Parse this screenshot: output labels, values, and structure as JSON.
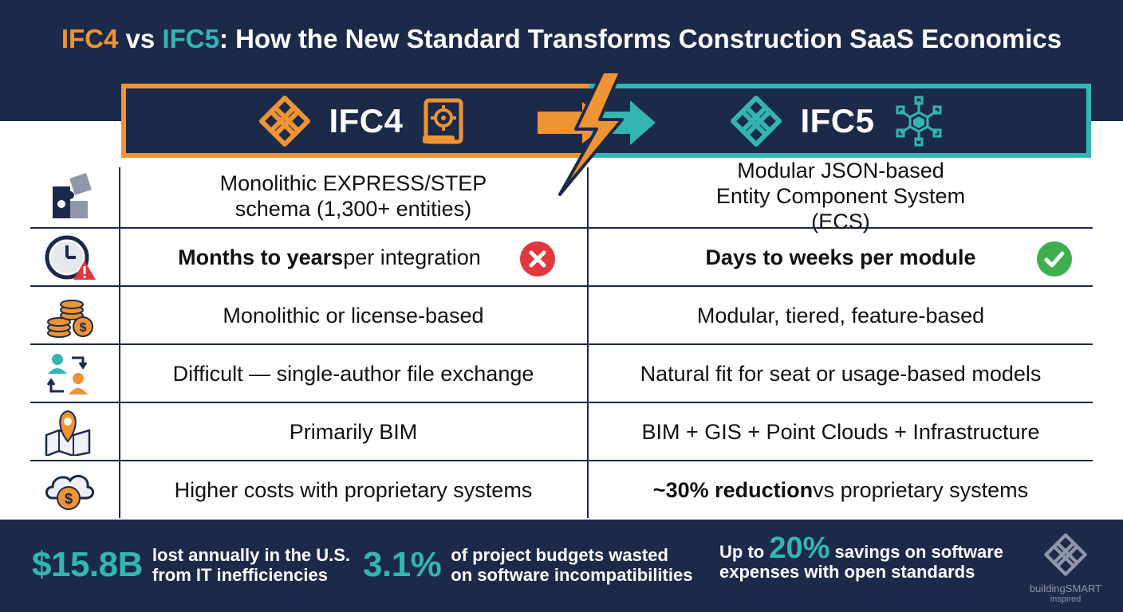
{
  "title": {
    "part1": "IFC4",
    "part2": " vs ",
    "part3": "IFC5",
    "part4": ": How the New Standard Transforms Construction SaaS Economics"
  },
  "header": {
    "left_label": "IFC4",
    "right_label": "IFC5"
  },
  "rows": [
    {
      "icon": "puzzle-icon",
      "left": "Monolithic EXPRESS/STEP schema (1,300+ entities)",
      "right": "Modular JSON-based Entity Component System (ECS)"
    },
    {
      "icon": "clock-warning-icon",
      "left_bold": "Months to years",
      "left_rest": " per integration",
      "left_status": "x-icon",
      "right_bold": "Days to weeks per module",
      "right_status": "check-icon"
    },
    {
      "icon": "coins-icon",
      "left": "Monolithic or license-based",
      "right": "Modular, tiered, feature-based"
    },
    {
      "icon": "users-exchange-icon",
      "left": "Difficult — single-author file exchange",
      "right": "Natural fit for seat or usage-based models"
    },
    {
      "icon": "map-pin-icon",
      "left": "Primarily BIM",
      "right": "BIM + GIS + Point Clouds + Infrastructure"
    },
    {
      "icon": "cloud-dollar-icon",
      "left": "Higher costs with proprietary systems",
      "right_bold": "~30% reduction",
      "right_rest": " vs proprietary systems"
    }
  ],
  "stats": [
    {
      "value": "$15.8B",
      "line1": "lost annually in the U.S.",
      "line2": "from IT inefficiencies"
    },
    {
      "value": "3.1%",
      "line1": "of project budgets wasted",
      "line2": "on software incompatibilities"
    },
    {
      "prefix": "Up to ",
      "value": "20%",
      "line1_rest": " savings on software",
      "line2": "expenses with open standards"
    }
  ],
  "logo": {
    "brand": "buildingSMART",
    "sub": "inspired"
  },
  "colors": {
    "navy": "#1c2a4a",
    "orange": "#ef9434",
    "teal": "#33b6b3",
    "red": "#e0383e",
    "green": "#3fae4f"
  }
}
